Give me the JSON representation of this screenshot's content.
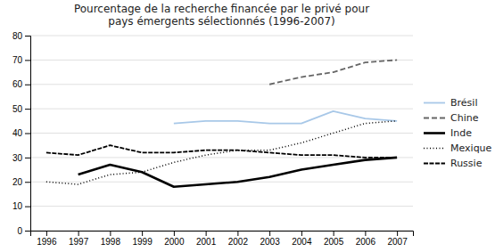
{
  "chart_data": {
    "type": "line",
    "title": "Pourcentage de la recherche financée par le privé pour\npays émergents sélectionnés (1996-2007)",
    "x": [
      1996,
      1997,
      1998,
      1999,
      2000,
      2001,
      2002,
      2003,
      2004,
      2005,
      2006,
      2007
    ],
    "series": [
      {
        "name": "Brésil",
        "color": "#a8c8e8",
        "line_style": "solid",
        "values": [
          null,
          null,
          null,
          null,
          44,
          45,
          45,
          44,
          44,
          49,
          46,
          45
        ]
      },
      {
        "name": "Chine",
        "color": "#666666",
        "line_style": "dashed",
        "values": [
          null,
          null,
          null,
          null,
          null,
          null,
          null,
          60,
          63,
          65,
          69,
          70
        ]
      },
      {
        "name": "Inde",
        "color": "#000000",
        "line_style": "solid",
        "values": [
          null,
          23,
          27,
          24,
          18,
          19,
          20,
          22,
          25,
          27,
          29,
          30
        ]
      },
      {
        "name": "Mexique",
        "color": "#000000",
        "line_style": "dotted",
        "values": [
          20,
          19,
          23,
          24,
          28,
          31,
          33,
          33,
          36,
          40,
          44,
          45
        ]
      },
      {
        "name": "Russie",
        "color": "#000000",
        "line_style": "densely-dashed",
        "values": [
          32,
          31,
          35,
          32,
          32,
          33,
          33,
          32,
          31,
          31,
          30,
          30
        ]
      }
    ],
    "xlim": [
      1995.5,
      2007.5
    ],
    "xticks": [
      1996,
      1997,
      1998,
      1999,
      2000,
      2001,
      2002,
      2003,
      2004,
      2005,
      2006,
      2007
    ],
    "ylim": [
      0,
      80
    ],
    "yticks": [
      0,
      10,
      20,
      30,
      40,
      50,
      60,
      70,
      80
    ],
    "grid": true,
    "legend": "right"
  }
}
